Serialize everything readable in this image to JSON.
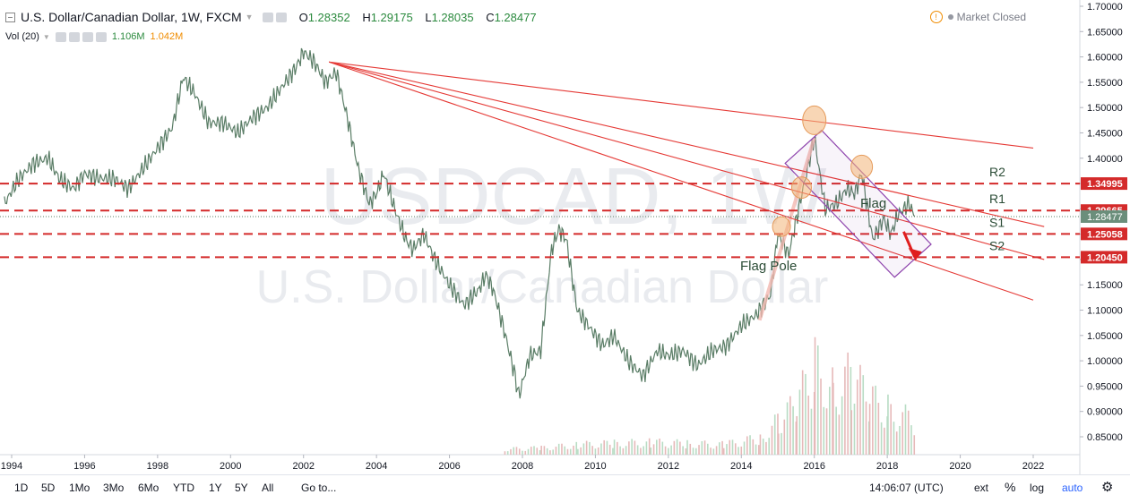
{
  "header": {
    "symbol_title": "U.S. Dollar/Canadian Dollar, 1W, FXCM",
    "ohlc": [
      {
        "label": "O",
        "value": "1.28352"
      },
      {
        "label": "H",
        "value": "1.29175"
      },
      {
        "label": "L",
        "value": "1.28035"
      },
      {
        "label": "C",
        "value": "1.28477"
      }
    ],
    "volume": {
      "label": "Vol (20)",
      "value": "1.106M",
      "ma_value": "1.042M"
    },
    "market_status": "Market Closed"
  },
  "chart_data": {
    "type": "line",
    "watermark_symbol": "USDCAD, 1W",
    "watermark_name": "U.S. Dollar/Canadian Dollar",
    "x_ticks": [
      "1994",
      "1996",
      "1998",
      "2000",
      "2002",
      "2004",
      "2006",
      "2008",
      "2010",
      "2012",
      "2014",
      "2016",
      "2018",
      "2020",
      "2022"
    ],
    "y_ticks": [
      "0.85000",
      "0.90000",
      "0.95000",
      "1.00000",
      "1.05000",
      "1.10000",
      "1.15000",
      "1.20000",
      "1.25000",
      "1.30000",
      "1.35000",
      "1.40000",
      "1.45000",
      "1.50000",
      "1.55000",
      "1.60000",
      "1.65000",
      "1.70000"
    ],
    "ylim": [
      0.82,
      1.7
    ],
    "xlim": [
      1993.8,
      2023.0
    ],
    "price": [
      [
        1993.8,
        1.31
      ],
      [
        1994.2,
        1.36
      ],
      [
        1994.6,
        1.39
      ],
      [
        1995.0,
        1.4
      ],
      [
        1995.3,
        1.36
      ],
      [
        1995.7,
        1.34
      ],
      [
        1996.0,
        1.37
      ],
      [
        1996.4,
        1.36
      ],
      [
        1996.8,
        1.36
      ],
      [
        1997.2,
        1.34
      ],
      [
        1997.6,
        1.38
      ],
      [
        1998.0,
        1.42
      ],
      [
        1998.4,
        1.46
      ],
      [
        1998.7,
        1.56
      ],
      [
        1999.0,
        1.53
      ],
      [
        1999.4,
        1.47
      ],
      [
        1999.8,
        1.47
      ],
      [
        2000.2,
        1.45
      ],
      [
        2000.6,
        1.48
      ],
      [
        2001.0,
        1.5
      ],
      [
        2001.4,
        1.54
      ],
      [
        2001.8,
        1.58
      ],
      [
        2002.0,
        1.61
      ],
      [
        2002.3,
        1.59
      ],
      [
        2002.6,
        1.55
      ],
      [
        2002.9,
        1.57
      ],
      [
        2003.2,
        1.48
      ],
      [
        2003.5,
        1.38
      ],
      [
        2003.8,
        1.31
      ],
      [
        2004.0,
        1.33
      ],
      [
        2004.2,
        1.37
      ],
      [
        2004.5,
        1.3
      ],
      [
        2004.8,
        1.24
      ],
      [
        2005.0,
        1.22
      ],
      [
        2005.3,
        1.25
      ],
      [
        2005.6,
        1.2
      ],
      [
        2006.0,
        1.15
      ],
      [
        2006.4,
        1.11
      ],
      [
        2006.8,
        1.14
      ],
      [
        2007.0,
        1.17
      ],
      [
        2007.2,
        1.14
      ],
      [
        2007.5,
        1.06
      ],
      [
        2007.8,
        0.97
      ],
      [
        2007.9,
        0.93
      ],
      [
        2008.2,
        1.01
      ],
      [
        2008.5,
        1.02
      ],
      [
        2008.8,
        1.22
      ],
      [
        2009.0,
        1.26
      ],
      [
        2009.2,
        1.24
      ],
      [
        2009.5,
        1.1
      ],
      [
        2009.8,
        1.07
      ],
      [
        2010.2,
        1.03
      ],
      [
        2010.5,
        1.05
      ],
      [
        2010.9,
        1.0
      ],
      [
        2011.3,
        0.97
      ],
      [
        2011.7,
        1.02
      ],
      [
        2012.0,
        1.01
      ],
      [
        2012.4,
        1.02
      ],
      [
        2012.8,
        0.99
      ],
      [
        2013.2,
        1.02
      ],
      [
        2013.6,
        1.03
      ],
      [
        2014.0,
        1.07
      ],
      [
        2014.4,
        1.09
      ],
      [
        2014.8,
        1.13
      ],
      [
        2015.0,
        1.25
      ],
      [
        2015.3,
        1.21
      ],
      [
        2015.6,
        1.31
      ],
      [
        2016.0,
        1.44
      ],
      [
        2016.3,
        1.3
      ],
      [
        2016.6,
        1.31
      ],
      [
        2016.9,
        1.34
      ],
      [
        2017.1,
        1.33
      ],
      [
        2017.3,
        1.37
      ],
      [
        2017.6,
        1.24
      ],
      [
        2017.9,
        1.28
      ],
      [
        2018.1,
        1.25
      ],
      [
        2018.3,
        1.29
      ],
      [
        2018.6,
        1.31
      ],
      [
        2018.75,
        1.285
      ]
    ],
    "volume_max_label": "",
    "volume": [
      [
        2007.5,
        0.01
      ],
      [
        2008.5,
        0.012
      ],
      [
        2009.5,
        0.018
      ],
      [
        2010.5,
        0.02
      ],
      [
        2011.5,
        0.022
      ],
      [
        2012.5,
        0.02
      ],
      [
        2013.5,
        0.018
      ],
      [
        2014.5,
        0.03
      ],
      [
        2015.0,
        0.06
      ],
      [
        2015.5,
        0.09
      ],
      [
        2016.0,
        0.16
      ],
      [
        2016.5,
        0.12
      ],
      [
        2017.0,
        0.14
      ],
      [
        2017.5,
        0.1
      ],
      [
        2018.0,
        0.08
      ],
      [
        2018.75,
        0.06
      ]
    ],
    "levels": [
      {
        "name": "R2",
        "value": "1.34995",
        "y": 1.34995
      },
      {
        "name": "R1",
        "value": "1.29665",
        "y": 1.29665
      },
      {
        "name": "S1",
        "value": "1.25058",
        "y": 1.25058
      },
      {
        "name": "S2",
        "value": "1.20450",
        "y": 1.2045
      }
    ],
    "last_price_label": "1.28477",
    "last_price": 1.28477,
    "trendlines": [
      {
        "from": [
          2002.7,
          1.59
        ],
        "to": [
          2022.0,
          1.42
        ]
      },
      {
        "from": [
          2002.7,
          1.59
        ],
        "to": [
          2022.3,
          1.265
        ]
      },
      {
        "from": [
          2002.7,
          1.59
        ],
        "to": [
          2022.3,
          1.2
        ]
      },
      {
        "from": [
          2002.7,
          1.59
        ],
        "to": [
          2022.0,
          1.12
        ]
      }
    ],
    "annotations": {
      "flag_pole": "Flag Pole",
      "flag": "Flag"
    }
  },
  "footer": {
    "ranges": [
      "1D",
      "5D",
      "1Mo",
      "3Mo",
      "6Mo",
      "YTD",
      "1Y",
      "5Y",
      "All"
    ],
    "goto": "Go to...",
    "time": "14:06:07 (UTC)",
    "ext": "ext",
    "percent": "%",
    "log": "log",
    "auto": "auto"
  },
  "colors": {
    "level_line": "#d42a2a",
    "trendline": "#e53935",
    "price_up": "#3f9a5c",
    "price_down": "#c94f4f",
    "price_badge": "#d42a2a",
    "last_badge": "#6b8e7b",
    "channel": "#8e44ad"
  }
}
